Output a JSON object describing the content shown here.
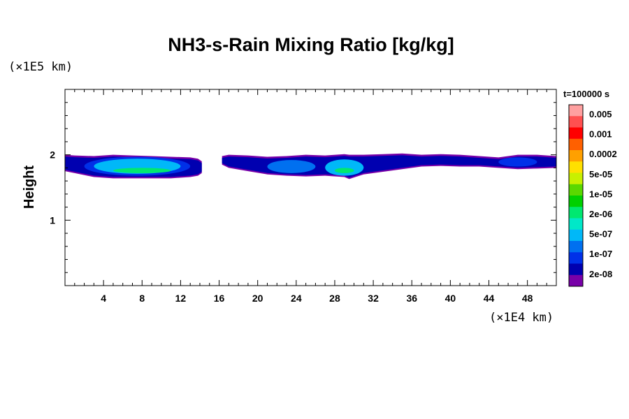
{
  "chart_data": {
    "type": "heatmap",
    "title": "NH3-s-Rain Mixing Ratio [kg/kg]",
    "ylabel": "Height",
    "xunit": "(×1E4 km)",
    "yunit": "(×1E5 km)",
    "time_label": "t=100000 s",
    "xlim": [
      0,
      51
    ],
    "ylim": [
      0,
      3
    ],
    "xticks": [
      4,
      8,
      12,
      16,
      20,
      24,
      28,
      32,
      36,
      40,
      44,
      48
    ],
    "xtick_labels": [
      "4",
      "8",
      "12",
      "16",
      "20",
      "24",
      "28",
      "32",
      "36",
      "40",
      "44",
      "48"
    ],
    "yticks": [
      1,
      2
    ],
    "ytick_labels": [
      "1",
      "2"
    ],
    "colorbar": {
      "colors": [
        "#ffa0a0",
        "#ff5050",
        "#ff0000",
        "#ff6000",
        "#ffa000",
        "#ffe000",
        "#c8f000",
        "#5ad800",
        "#00d000",
        "#00e870",
        "#00e8c8",
        "#00b8f8",
        "#0070f0",
        "#0030e8",
        "#0000b0",
        "#7800a8"
      ],
      "labels": [
        "0.005",
        "0.001",
        "0.0002",
        "5e-05",
        "1e-05",
        "2e-06",
        "5e-07",
        "1e-07",
        "2e-08"
      ]
    },
    "bands": [
      {
        "x": [
          0,
          1,
          3,
          5,
          7,
          9,
          11,
          13,
          13.8,
          14.2
        ],
        "top": [
          2.0,
          1.99,
          1.98,
          2.0,
          1.99,
          1.98,
          1.97,
          1.96,
          1.94,
          1.9
        ],
        "bottom": [
          1.75,
          1.72,
          1.66,
          1.64,
          1.64,
          1.64,
          1.64,
          1.66,
          1.68,
          1.72
        ],
        "core": [
          {
            "x": [
              2,
              13
            ],
            "y": [
              1.68,
              1.97
            ],
            "level": 2
          },
          {
            "x": [
              3,
              12
            ],
            "y": [
              1.71,
              1.94
            ],
            "level": 4
          },
          {
            "x": [
              5,
              11
            ],
            "y": [
              1.72,
              1.8
            ],
            "level": 6
          }
        ]
      },
      {
        "x": [
          16.3,
          17,
          19,
          21,
          23,
          25,
          27,
          29,
          29.5,
          31,
          33,
          35,
          37,
          39,
          41,
          43,
          45,
          47,
          49,
          51
        ],
        "top": [
          1.98,
          2.0,
          1.99,
          1.97,
          1.98,
          2.0,
          1.99,
          2.01,
          2.0,
          2.0,
          2.01,
          2.02,
          2.0,
          2.01,
          2.0,
          1.98,
          1.96,
          2.0,
          2.0,
          1.98
        ],
        "bottom": [
          1.85,
          1.8,
          1.75,
          1.7,
          1.68,
          1.67,
          1.68,
          1.66,
          1.63,
          1.7,
          1.74,
          1.78,
          1.82,
          1.83,
          1.82,
          1.82,
          1.8,
          1.78,
          1.79,
          1.8
        ],
        "core": [
          {
            "x": [
              21,
              26
            ],
            "y": [
              1.72,
              1.92
            ],
            "level": 3
          },
          {
            "x": [
              27,
              31
            ],
            "y": [
              1.68,
              1.93
            ],
            "level": 4
          },
          {
            "x": [
              28,
              30
            ],
            "y": [
              1.72,
              1.8
            ],
            "level": 6
          },
          {
            "x": [
              45,
              49
            ],
            "y": [
              1.82,
              1.96
            ],
            "level": 2
          }
        ]
      }
    ]
  }
}
